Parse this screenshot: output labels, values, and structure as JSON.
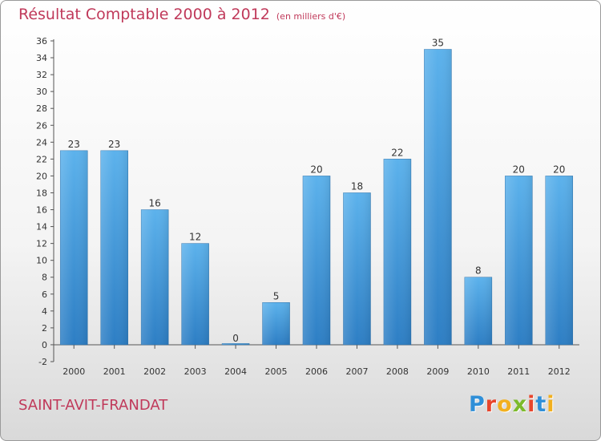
{
  "header": {
    "title": "Résultat Comptable 2000 à 2012",
    "subtitle": "(en milliers d'€)"
  },
  "footer": {
    "city": "SAINT-AVIT-FRANDAT",
    "logo_letters": [
      "P",
      "r",
      "o",
      "x",
      "i",
      "t",
      "i"
    ],
    "logo_colors": [
      "#2f8fd8",
      "#e8452c",
      "#f2b01e",
      "#7cba2b",
      "#e8452c",
      "#2f8fd8",
      "#f2b01e"
    ]
  },
  "chart_data": {
    "type": "bar",
    "categories": [
      "2000",
      "2001",
      "2002",
      "2003",
      "2004",
      "2005",
      "2006",
      "2007",
      "2008",
      "2009",
      "2010",
      "2011",
      "2012"
    ],
    "values": [
      23,
      23,
      16,
      12,
      0,
      5,
      20,
      18,
      22,
      35,
      8,
      20,
      20
    ],
    "data_labels": [
      "23",
      "23",
      "16",
      "12",
      "0",
      "5",
      "20",
      "18",
      "22",
      "35",
      "8",
      "20",
      "20"
    ],
    "ylim": [
      -2,
      36
    ],
    "yticks": [
      "-2",
      "0",
      "2",
      "4",
      "6",
      "8",
      "10",
      "12",
      "14",
      "16",
      "18",
      "20",
      "22",
      "24",
      "26",
      "28",
      "30",
      "32",
      "34",
      "36"
    ],
    "grid": false,
    "bar_color": "#4a9fe0"
  }
}
